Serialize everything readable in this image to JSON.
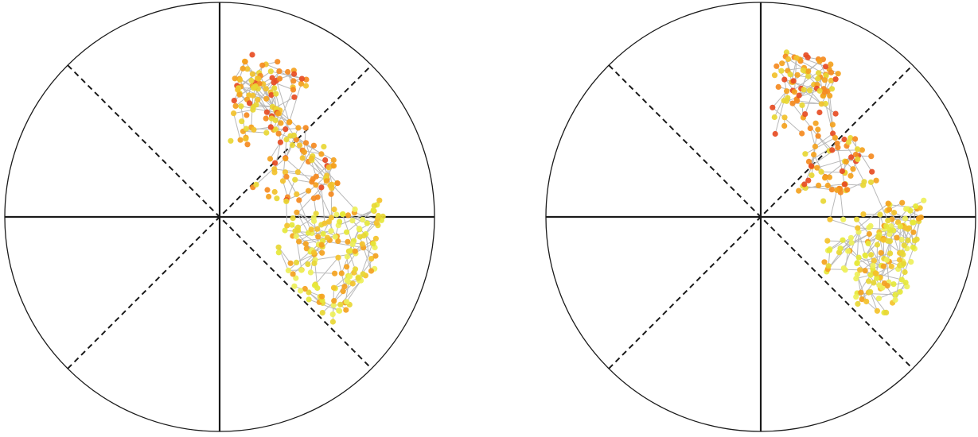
{
  "figure": {
    "panels": [
      {
        "id": "left",
        "sectors": 8,
        "solid_axes": [
          "horizontal",
          "vertical"
        ],
        "dashed_axes": [
          "diagonal-45",
          "diagonal-135"
        ],
        "clusters": [
          {
            "name": "upper",
            "theta_deg": [
              56,
              84
            ],
            "r_frac": [
              0.32,
              0.78
            ],
            "count": 95,
            "colors": [
              "#f58a1f",
              "#f4a21e",
              "#e74c23",
              "#f2c12b",
              "#e8d734"
            ]
          },
          {
            "name": "middle",
            "theta_deg": [
              10,
              55
            ],
            "r_frac": [
              0.18,
              0.58
            ],
            "count": 70,
            "colors": [
              "#f4a21e",
              "#f58a1f",
              "#e8d734",
              "#e74c23",
              "#f2c12b"
            ]
          },
          {
            "name": "lower",
            "theta_deg": [
              -42,
              5
            ],
            "r_frac": [
              0.28,
              0.75
            ],
            "count": 150,
            "colors": [
              "#e6e83a",
              "#eef05a",
              "#e8d734",
              "#f4c22a",
              "#f4a21e"
            ]
          }
        ]
      },
      {
        "id": "right",
        "sectors": 8,
        "solid_axes": [
          "horizontal",
          "vertical"
        ],
        "dashed_axes": [
          "diagonal-45",
          "diagonal-135"
        ],
        "clusters": [
          {
            "name": "upper",
            "theta_deg": [
              60,
              84
            ],
            "r_frac": [
              0.32,
              0.78
            ],
            "count": 80,
            "colors": [
              "#f58a1f",
              "#f4a21e",
              "#e74c23",
              "#f2c12b",
              "#e8d734"
            ]
          },
          {
            "name": "middle",
            "theta_deg": [
              14,
              56
            ],
            "r_frac": [
              0.18,
              0.58
            ],
            "count": 65,
            "colors": [
              "#f4a21e",
              "#e8d734",
              "#f58a1f",
              "#e74c23"
            ]
          },
          {
            "name": "lower",
            "theta_deg": [
              -40,
              6
            ],
            "r_frac": [
              0.28,
              0.75
            ],
            "count": 150,
            "colors": [
              "#e6e83a",
              "#eef05a",
              "#e8d734",
              "#f4c22a",
              "#f4a21e"
            ]
          }
        ]
      }
    ],
    "colors": {
      "outline": "#1a1a1a",
      "edge": "#b9b9b9",
      "background": "#ffffff"
    }
  }
}
